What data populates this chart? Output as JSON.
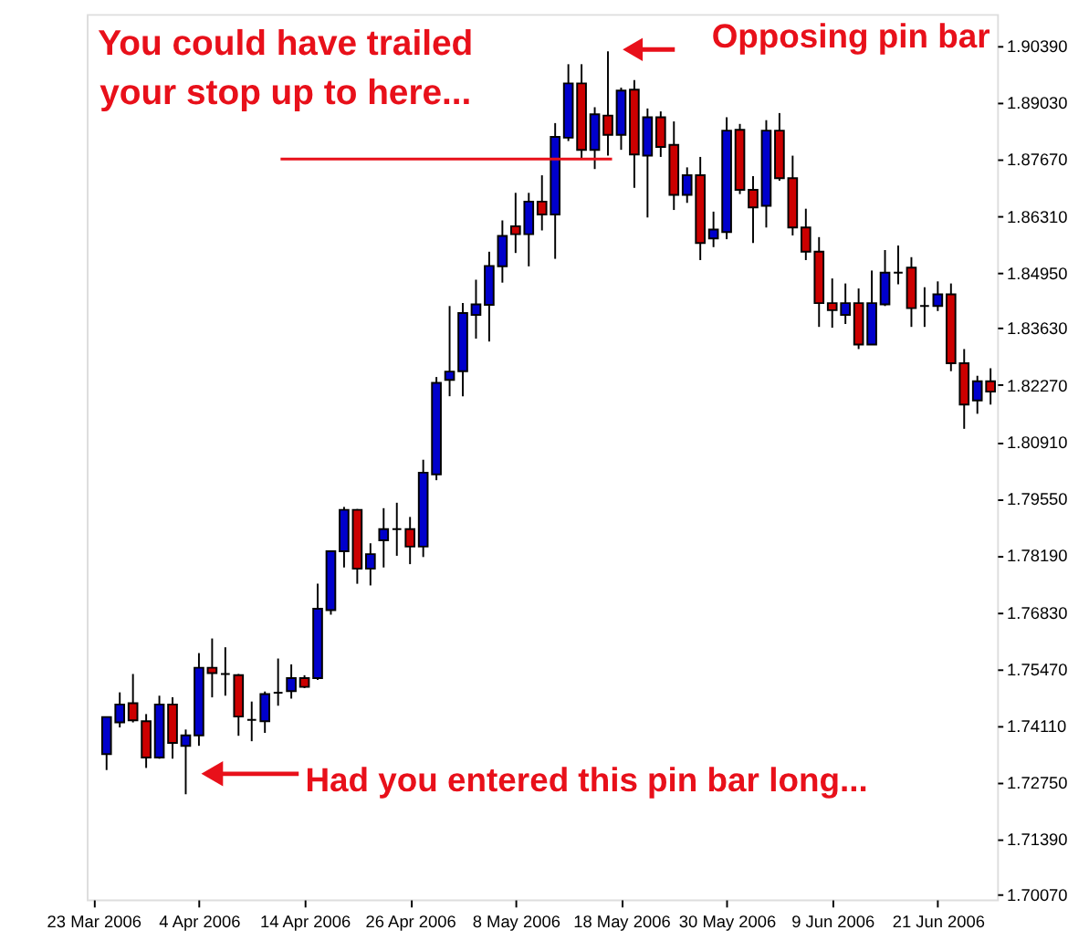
{
  "chart_data": {
    "type": "candlestick",
    "categories": [
      "23 Mar 2006",
      null,
      null,
      null,
      null,
      null,
      null,
      null,
      "4 Apr 2006",
      null,
      null,
      null,
      null,
      null,
      null,
      null,
      "14 Apr 2006",
      null,
      null,
      null,
      null,
      null,
      null,
      null,
      "26 Apr 2006",
      null,
      null,
      null,
      null,
      null,
      null,
      null,
      "8 May 2006",
      null,
      null,
      null,
      null,
      null,
      null,
      null,
      "18 May 2006",
      null,
      null,
      null,
      null,
      null,
      null,
      null,
      "30 May 2006",
      null,
      null,
      null,
      null,
      null,
      null,
      null,
      "9 Jun 2006",
      null,
      null,
      null,
      null,
      null,
      null,
      null,
      "21 Jun 2006",
      null,
      null,
      null,
      null
    ],
    "ohlc": [
      null,
      [
        1.7343,
        1.7432,
        1.7305,
        1.7432
      ],
      [
        1.7419,
        1.7491,
        1.7407,
        1.7462
      ],
      [
        1.7465,
        1.7535,
        1.7419,
        1.7424
      ],
      [
        1.7422,
        1.7439,
        1.731,
        1.7335
      ],
      [
        1.7335,
        1.7483,
        1.7332,
        1.7462
      ],
      [
        1.7462,
        1.7479,
        1.7332,
        1.737
      ],
      [
        1.7363,
        1.7402,
        1.7247,
        1.7388
      ],
      [
        1.7388,
        1.7585,
        1.7363,
        1.755
      ],
      [
        1.755,
        1.762,
        1.7479,
        1.7537
      ],
      [
        1.7535,
        1.7599,
        1.7483,
        1.7535
      ],
      [
        1.7532,
        1.7535,
        1.7387,
        1.7433
      ],
      [
        1.7425,
        1.7469,
        1.7374,
        1.7425
      ],
      [
        1.7422,
        1.7493,
        1.7394,
        1.7487
      ],
      [
        1.749,
        1.7572,
        1.7459,
        1.749
      ],
      [
        1.7494,
        1.7558,
        1.7476,
        1.7525
      ],
      [
        1.7525,
        1.7532,
        1.7501,
        1.7504
      ],
      [
        1.7525,
        1.7751,
        1.7521,
        1.7691
      ],
      [
        1.7688,
        1.7829,
        1.7677,
        1.7829
      ],
      [
        1.7829,
        1.7935,
        1.779,
        1.7928
      ],
      [
        1.7928,
        1.793,
        1.7751,
        1.7787
      ],
      [
        1.7787,
        1.7848,
        1.7747,
        1.7822
      ],
      [
        1.7855,
        1.7932,
        1.779,
        1.7882
      ],
      [
        1.7882,
        1.7945,
        1.7818,
        1.7882
      ],
      [
        1.7882,
        1.7911,
        1.7798,
        1.784
      ],
      [
        1.784,
        1.8048,
        1.7815,
        1.8017
      ],
      [
        1.8013,
        1.8246,
        1.7999,
        1.8232
      ],
      [
        1.8239,
        1.8416,
        1.82,
        1.8259
      ],
      [
        1.826,
        1.8423,
        1.82,
        1.8399
      ],
      [
        1.8395,
        1.8479,
        1.8338,
        1.842
      ],
      [
        1.8419,
        1.8546,
        1.8331,
        1.8512
      ],
      [
        1.8511,
        1.8621,
        1.8472,
        1.8584
      ],
      [
        1.8607,
        1.8687,
        1.8543,
        1.8588
      ],
      [
        1.8588,
        1.8687,
        1.8511,
        1.8666
      ],
      [
        1.8666,
        1.8729,
        1.8597,
        1.8635
      ],
      [
        1.8635,
        1.8854,
        1.8529,
        1.8821
      ],
      [
        1.8819,
        1.8995,
        1.8811,
        1.8949
      ],
      [
        1.8949,
        1.8995,
        1.8769,
        1.879
      ],
      [
        1.879,
        1.8892,
        1.8744,
        1.8875
      ],
      [
        1.8872,
        1.9026,
        1.8776,
        1.8826
      ],
      [
        1.8826,
        1.8939,
        1.879,
        1.8932
      ],
      [
        1.8934,
        1.8957,
        1.8699,
        1.8779
      ],
      [
        1.8776,
        1.8889,
        1.8628,
        1.8868
      ],
      [
        1.8868,
        1.8882,
        1.8773,
        1.8797
      ],
      [
        1.8802,
        1.8858,
        1.8646,
        1.8682
      ],
      [
        1.8682,
        1.8748,
        1.8663,
        1.8729
      ],
      [
        1.8729,
        1.8773,
        1.8526,
        1.8567
      ],
      [
        1.8578,
        1.8642,
        1.8557,
        1.8599
      ],
      [
        1.8593,
        1.8868,
        1.8576,
        1.8836
      ],
      [
        1.8838,
        1.8852,
        1.8684,
        1.8694
      ],
      [
        1.8694,
        1.8727,
        1.8567,
        1.8652
      ],
      [
        1.8656,
        1.8861,
        1.8604,
        1.8836
      ],
      [
        1.8836,
        1.8878,
        1.8716,
        1.8722
      ],
      [
        1.8722,
        1.8776,
        1.8585,
        1.8604
      ],
      [
        1.8604,
        1.8649,
        1.8526,
        1.8546
      ],
      [
        1.8546,
        1.8581,
        1.8366,
        1.8423
      ],
      [
        1.8423,
        1.8482,
        1.8364,
        1.8406
      ],
      [
        1.8395,
        1.847,
        1.8373,
        1.8423
      ],
      [
        1.8423,
        1.8458,
        1.8313,
        1.8324
      ],
      [
        1.8324,
        1.8501,
        1.8324,
        1.8423
      ],
      [
        1.842,
        1.855,
        1.8416,
        1.8496
      ],
      [
        1.8496,
        1.8561,
        1.8468,
        1.8496
      ],
      [
        1.8508,
        1.8533,
        1.8366,
        1.8411
      ],
      [
        1.8416,
        1.8461,
        1.8366,
        1.8416
      ],
      [
        1.8416,
        1.8475,
        1.8404,
        1.8444
      ],
      [
        1.8444,
        1.847,
        1.826,
        1.8279
      ],
      [
        1.8279,
        1.8313,
        1.8122,
        1.818
      ],
      [
        1.819,
        1.8249,
        1.8158,
        1.8236
      ],
      [
        1.8236,
        1.8267,
        1.818,
        1.8211
      ]
    ],
    "colors": [
      null,
      "#0000cc",
      "#0000cc",
      "#cc0000",
      "#cc0000",
      "#0000cc",
      "#cc0000",
      "#0000cc",
      "#0000cc",
      "#cc0000",
      "#000000",
      "#cc0000",
      "#000000",
      "#0000cc",
      "#000000",
      "#0000cc",
      "#cc0000",
      "#0000cc",
      "#0000cc",
      "#0000cc",
      "#cc0000",
      "#0000cc",
      "#0000cc",
      "#000000",
      "#cc0000",
      "#0000cc",
      "#0000cc",
      "#0000cc",
      "#0000cc",
      "#0000cc",
      "#0000cc",
      "#0000cc",
      "#cc0000",
      "#0000cc",
      "#cc0000",
      "#0000cc",
      "#0000cc",
      "#cc0000",
      "#0000cc",
      "#cc0000",
      "#0000cc",
      "#cc0000",
      "#0000cc",
      "#cc0000",
      "#cc0000",
      "#0000cc",
      "#cc0000",
      "#0000cc",
      "#0000cc",
      "#cc0000",
      "#cc0000",
      "#0000cc",
      "#cc0000",
      "#cc0000",
      "#cc0000",
      "#cc0000",
      "#cc0000",
      "#0000cc",
      "#cc0000",
      "#0000cc",
      "#0000cc",
      "#000000",
      "#cc0000",
      "#000000",
      "#0000cc",
      "#cc0000",
      "#cc0000",
      "#0000cc",
      "#cc0000"
    ],
    "ylim": [
      1.6995,
      1.9115
    ],
    "yticks": [
      {
        "value": 1.9039,
        "label": "1.90390"
      },
      {
        "value": 1.8903,
        "label": "1.89030"
      },
      {
        "value": 1.8767,
        "label": "1.87670"
      },
      {
        "value": 1.8631,
        "label": "1.86310"
      },
      {
        "value": 1.8495,
        "label": "1.84950"
      },
      {
        "value": 1.8363,
        "label": "1.83630"
      },
      {
        "value": 1.8227,
        "label": "1.82270"
      },
      {
        "value": 1.8091,
        "label": "1.80910"
      },
      {
        "value": 1.7955,
        "label": "1.79550"
      },
      {
        "value": 1.7819,
        "label": "1.78190"
      },
      {
        "value": 1.7683,
        "label": "1.76830"
      },
      {
        "value": 1.7547,
        "label": "1.75470"
      },
      {
        "value": 1.7411,
        "label": "1.74110"
      },
      {
        "value": 1.7275,
        "label": "1.72750"
      },
      {
        "value": 1.7139,
        "label": "1.71390"
      },
      {
        "value": 1.7007,
        "label": "1.70070"
      }
    ],
    "ref_lines": [
      {
        "axis": "y",
        "value": 1.8768,
        "color": "#e8101a"
      }
    ],
    "annotations": [
      "You could have trailed your stop up to here...",
      "Opposing pin bar",
      "Had you entered this pin bar long..."
    ]
  }
}
